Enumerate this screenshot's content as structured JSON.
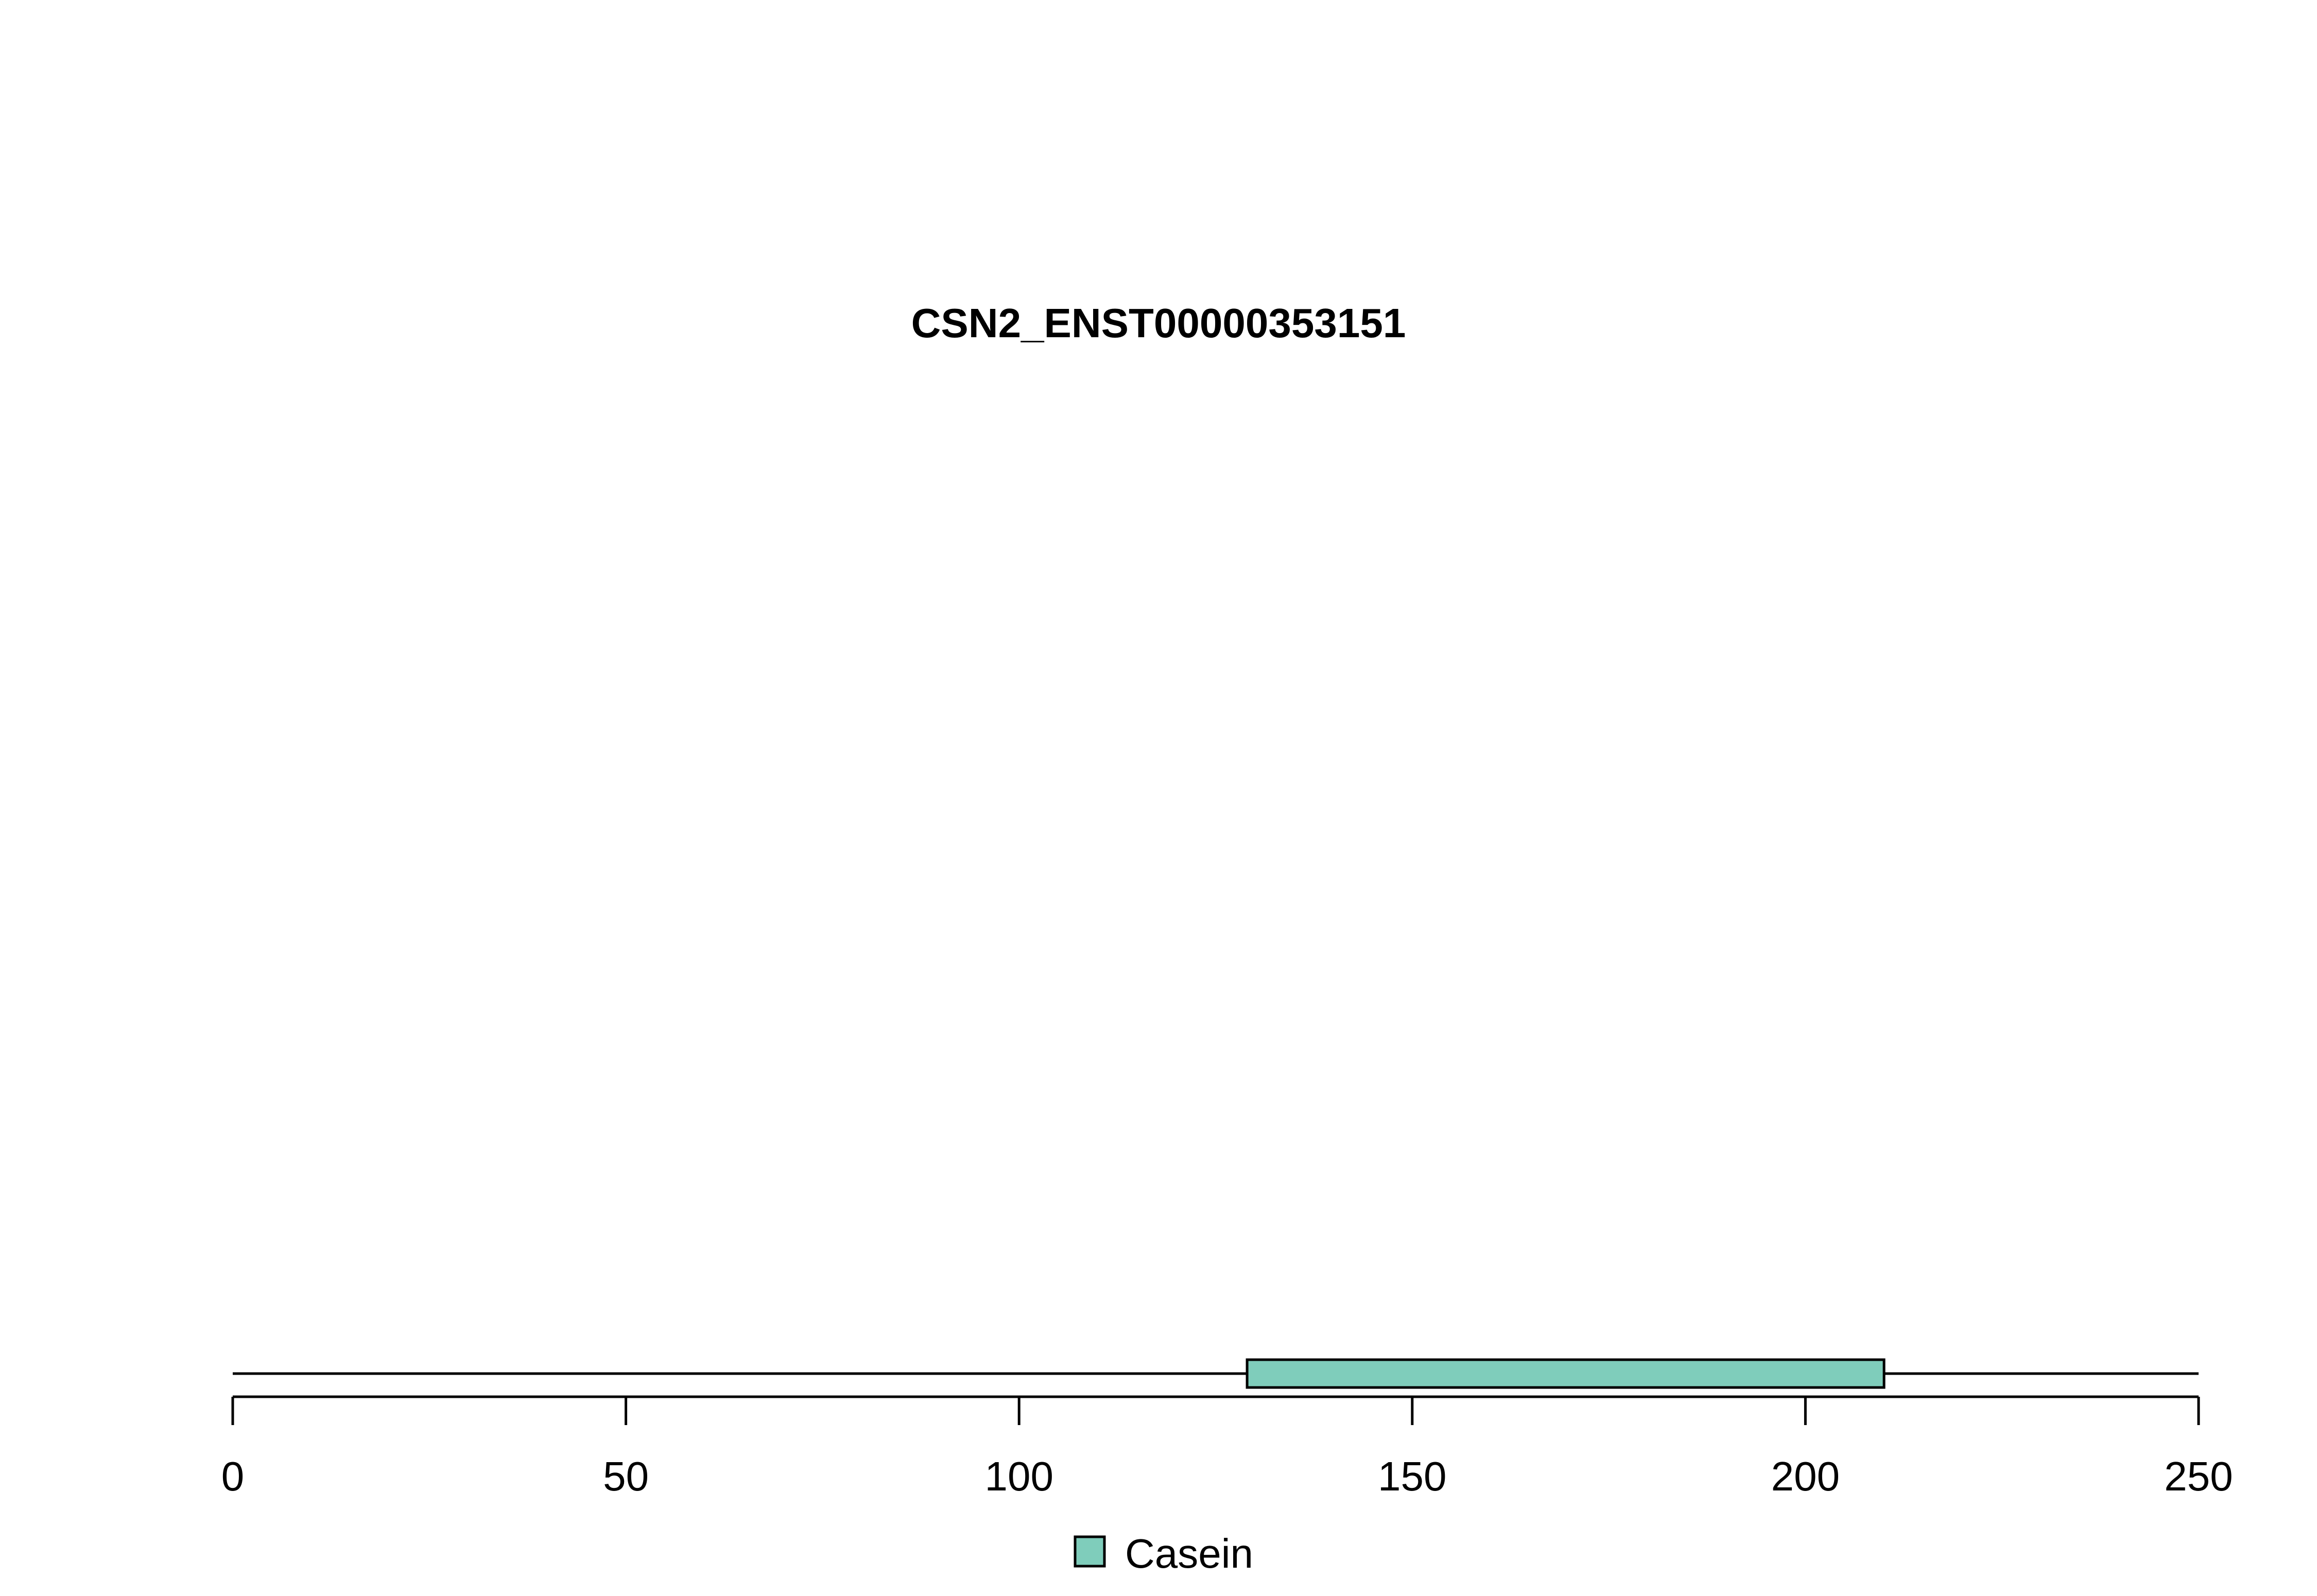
{
  "chart_data": {
    "type": "bar",
    "title": "CSN2_ENST00000353151",
    "xlim": [
      0,
      250
    ],
    "x_ticks": [
      0,
      50,
      100,
      150,
      200,
      250
    ],
    "x_tick_labels": [
      "0",
      "50",
      "100",
      "150",
      "200",
      "250"
    ],
    "backbone": {
      "start": 0,
      "end": 250
    },
    "domains": [
      {
        "name": "Casein",
        "start": 129,
        "end": 210,
        "color": "#7fcdbb"
      }
    ],
    "legend": {
      "placement": "bottom-center",
      "entries": [
        {
          "label": "Casein",
          "color": "#7fcdbb"
        }
      ]
    },
    "grid": false
  }
}
